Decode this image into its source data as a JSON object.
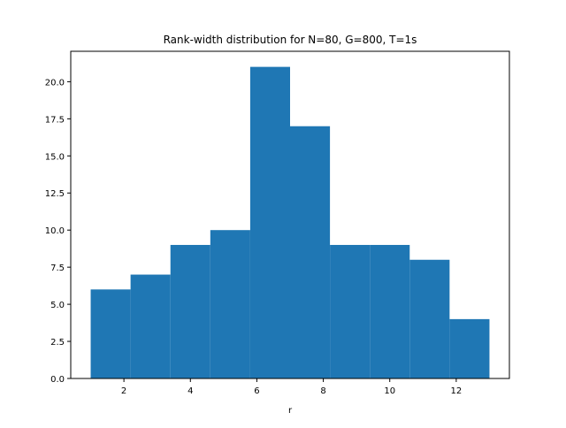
{
  "chart_data": {
    "type": "bar",
    "title": "Rank-width distribution for N=80, G=800, T=1s",
    "xlabel": "r",
    "ylabel": "",
    "bin_edges": [
      1.0,
      2.2,
      3.4,
      4.6,
      5.8,
      7.0,
      8.2,
      9.4,
      10.6,
      11.8,
      13.0
    ],
    "values": [
      6,
      7,
      9,
      10,
      21,
      17,
      9,
      9,
      8,
      4
    ],
    "xlim": [
      0.4,
      13.6
    ],
    "ylim": [
      0,
      22.05
    ],
    "xticks": [
      2,
      4,
      6,
      8,
      10,
      12
    ],
    "xtick_labels": [
      "2",
      "4",
      "6",
      "8",
      "10",
      "12"
    ],
    "yticks": [
      0,
      2.5,
      5,
      7.5,
      10,
      12.5,
      15,
      17.5,
      20
    ],
    "ytick_labels": [
      "0.0",
      "2.5",
      "5.0",
      "7.5",
      "10.0",
      "12.5",
      "15.0",
      "17.5",
      "20.0"
    ],
    "bar_color": "#1f77b4",
    "grid": false,
    "legend": "none"
  }
}
